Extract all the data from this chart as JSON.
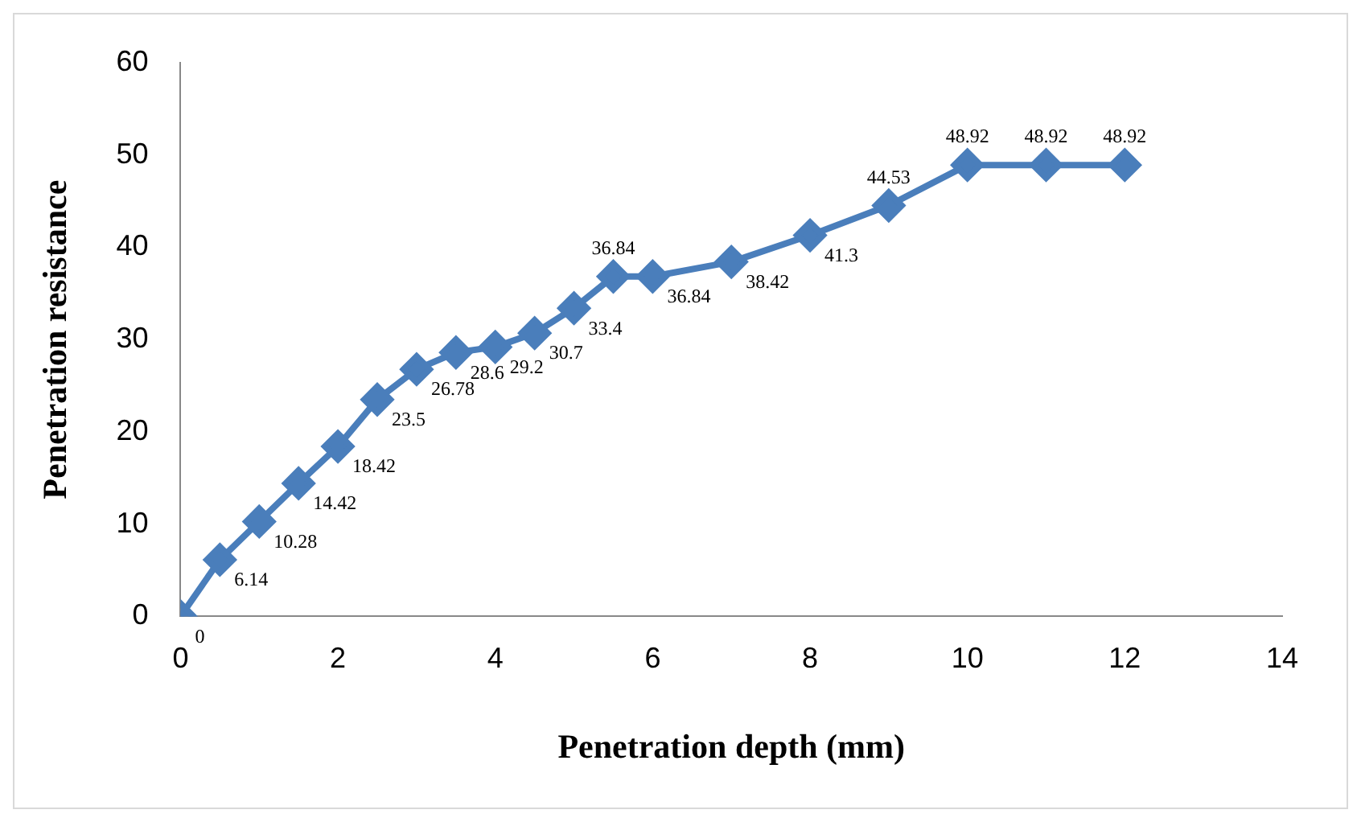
{
  "chart_data": {
    "type": "line",
    "xlabel": "Penetration depth (mm)",
    "ylabel": "Penetration resistance",
    "series": [
      {
        "color": "#4a7ebb",
        "x": [
          0,
          0.5,
          1,
          1.5,
          2,
          2.5,
          3,
          3.5,
          4,
          4.5,
          5,
          5.5,
          6,
          7,
          8,
          9,
          10,
          11,
          12
        ],
        "values": [
          0,
          6.14,
          10.28,
          14.42,
          18.42,
          23.5,
          26.78,
          28.6,
          29.2,
          30.7,
          33.4,
          36.84,
          36.84,
          38.42,
          41.3,
          44.53,
          48.92,
          48.92,
          48.92
        ]
      }
    ],
    "xlim": [
      0,
      14
    ],
    "xticks": [
      0,
      2,
      4,
      6,
      8,
      10,
      12,
      14
    ],
    "ylim": [
      0,
      60
    ],
    "yticks": [
      0,
      10,
      20,
      30,
      40,
      50,
      60
    ],
    "grid": false,
    "legend": false,
    "marker": "diamond",
    "line_style": "solid",
    "data_labels": true
  }
}
